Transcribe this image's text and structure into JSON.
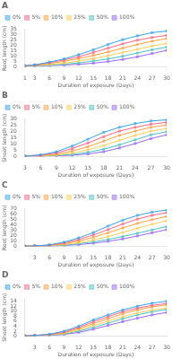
{
  "chart_data": [
    {
      "type": "line",
      "title": "A",
      "xlabel": "Duration of exposure (Days)",
      "ylabel": "Root length (cm)",
      "x": [
        1,
        3,
        6,
        9,
        12,
        15,
        18,
        21,
        24,
        27,
        30
      ],
      "series": [
        {
          "name": "0%",
          "values": [
            1.0,
            2.0,
            4.5,
            7.5,
            11.5,
            16.0,
            21.0,
            25.5,
            29.0,
            32.0,
            33.5
          ]
        },
        {
          "name": "5%",
          "values": [
            1.0,
            1.8,
            4.0,
            6.5,
            9.5,
            13.5,
            17.5,
            21.5,
            25.0,
            27.5,
            29.5
          ]
        },
        {
          "name": "10%",
          "values": [
            1.0,
            1.5,
            3.2,
            5.2,
            7.8,
            10.8,
            14.0,
            17.5,
            21.0,
            24.0,
            26.5
          ]
        },
        {
          "name": "25%",
          "values": [
            1.0,
            1.3,
            2.2,
            3.5,
            5.5,
            7.8,
            10.5,
            13.5,
            16.5,
            19.5,
            22.0
          ]
        },
        {
          "name": "50%",
          "values": [
            1.0,
            1.1,
            1.6,
            2.5,
            3.8,
            5.5,
            7.5,
            10.0,
            13.0,
            16.0,
            18.5
          ]
        },
        {
          "name": "100%",
          "values": [
            1.0,
            1.0,
            1.3,
            1.8,
            2.5,
            3.5,
            5.0,
            7.0,
            9.5,
            12.5,
            15.5
          ]
        }
      ],
      "xlim": [
        1,
        30
      ],
      "xticks": [
        1,
        3,
        6,
        9,
        12,
        15,
        18,
        21,
        24,
        27,
        30
      ],
      "ylim": [
        0,
        35
      ],
      "yticks": [
        0,
        5,
        10,
        15,
        20,
        25,
        30,
        35
      ],
      "grid": false,
      "legend": "upper left",
      "marker": "square",
      "line_style": "solid"
    },
    {
      "type": "line",
      "title": "B",
      "xlabel": "Duration of exposure (Days)",
      "ylabel": "Shoot length (cm)",
      "x": [
        3,
        6,
        9,
        12,
        15,
        18,
        21,
        24,
        27,
        30
      ],
      "series": [
        {
          "name": "0%",
          "values": [
            0.5,
            1.5,
            4.0,
            8.5,
            14.0,
            19.5,
            23.5,
            26.5,
            28.5,
            29.5
          ]
        },
        {
          "name": "5%",
          "values": [
            0.5,
            1.2,
            3.0,
            6.5,
            11.0,
            16.0,
            20.5,
            23.5,
            26.0,
            27.5
          ]
        },
        {
          "name": "10%",
          "values": [
            0.5,
            0.9,
            2.0,
            4.5,
            8.0,
            12.5,
            17.0,
            20.5,
            23.5,
            25.5
          ]
        },
        {
          "name": "25%",
          "values": [
            0.5,
            0.7,
            1.3,
            2.8,
            5.5,
            9.0,
            13.0,
            17.0,
            20.5,
            22.5
          ]
        },
        {
          "name": "50%",
          "values": [
            0.5,
            0.6,
            0.9,
            1.8,
            3.5,
            6.0,
            9.5,
            13.5,
            17.5,
            20.0
          ]
        },
        {
          "name": "100%",
          "values": [
            0.5,
            0.5,
            0.7,
            1.2,
            2.2,
            4.0,
            7.0,
            10.5,
            14.5,
            17.5
          ]
        }
      ],
      "xlim": [
        3,
        30
      ],
      "xticks": [
        3,
        6,
        9,
        12,
        15,
        18,
        21,
        24,
        27,
        30
      ],
      "ylim": [
        0,
        30
      ],
      "yticks": [
        0,
        5,
        10,
        15,
        20,
        25,
        30
      ],
      "grid": false,
      "legend": "upper left",
      "marker": "square",
      "line_style": "solid"
    },
    {
      "type": "line",
      "title": "C",
      "xlabel": "Duration of exposure (Days)",
      "ylabel": "Root length (cm)",
      "x": [
        1,
        3,
        6,
        9,
        12,
        15,
        18,
        21,
        24,
        27,
        30
      ],
      "series": [
        {
          "name": "0%",
          "values": [
            0.5,
            1.0,
            3.0,
            8.0,
            16.0,
            26.0,
            38.0,
            49.0,
            58.0,
            64.0,
            68.0
          ]
        },
        {
          "name": "5%",
          "values": [
            0.5,
            1.0,
            2.5,
            6.5,
            13.0,
            21.5,
            31.5,
            42.0,
            51.0,
            58.0,
            63.0
          ]
        },
        {
          "name": "10%",
          "values": [
            0.5,
            0.8,
            2.0,
            5.0,
            10.0,
            17.0,
            25.5,
            34.5,
            43.0,
            50.0,
            56.0
          ]
        },
        {
          "name": "25%",
          "values": [
            0.5,
            0.7,
            1.5,
            3.5,
            7.0,
            12.0,
            18.5,
            26.0,
            34.0,
            41.5,
            48.0
          ]
        },
        {
          "name": "50%",
          "values": [
            0.5,
            0.6,
            1.0,
            2.5,
            5.0,
            8.5,
            13.0,
            18.5,
            24.5,
            31.0,
            37.0
          ]
        },
        {
          "name": "100%",
          "values": [
            0.5,
            0.5,
            0.8,
            1.8,
            3.5,
            6.0,
            9.5,
            14.0,
            19.5,
            25.5,
            31.5
          ]
        }
      ],
      "xlim": [
        1,
        30
      ],
      "xticks": [
        3,
        6,
        9,
        12,
        15,
        18,
        21,
        24,
        27,
        30
      ],
      "ylim": [
        0,
        70
      ],
      "yticks": [
        0,
        10,
        20,
        30,
        40,
        50,
        60,
        70
      ],
      "grid": false,
      "legend": "upper left",
      "marker": "square",
      "line_style": "solid"
    },
    {
      "type": "line",
      "title": "D",
      "xlabel": "Duration of exposure (Days)",
      "ylabel": "Shoot length (cm)",
      "x": [
        1,
        3,
        6,
        9,
        12,
        15,
        18,
        21,
        24,
        27,
        30
      ],
      "series": [
        {
          "name": "0%",
          "values": [
            0.1,
            0.3,
            0.8,
            2.0,
            4.0,
            6.5,
            8.5,
            10.5,
            12.0,
            13.2,
            14.0
          ]
        },
        {
          "name": "5%",
          "values": [
            0.1,
            0.3,
            0.7,
            1.7,
            3.5,
            5.8,
            7.8,
            9.8,
            11.2,
            12.3,
            13.1
          ]
        },
        {
          "name": "10%",
          "values": [
            0.1,
            0.3,
            0.6,
            1.4,
            3.0,
            5.0,
            7.0,
            9.0,
            10.5,
            11.7,
            12.5
          ]
        },
        {
          "name": "25%",
          "values": [
            0.1,
            0.2,
            0.5,
            1.1,
            2.5,
            4.2,
            6.0,
            7.8,
            9.3,
            10.5,
            11.3
          ]
        },
        {
          "name": "50%",
          "values": [
            0.1,
            0.2,
            0.4,
            0.9,
            2.0,
            3.5,
            5.2,
            7.0,
            8.5,
            9.8,
            10.7
          ]
        },
        {
          "name": "100%",
          "values": [
            0.1,
            0.2,
            0.3,
            0.7,
            1.5,
            2.8,
            4.3,
            5.8,
            7.2,
            8.5,
            9.5
          ]
        }
      ],
      "xlim": [
        1,
        30
      ],
      "xticks": [
        3,
        6,
        9,
        12,
        15,
        18,
        21,
        24,
        27,
        30
      ],
      "ylim": [
        0,
        15
      ],
      "yticks": [
        0,
        2,
        4,
        6,
        8,
        10,
        12,
        14
      ],
      "grid": false,
      "legend": "upper left",
      "marker": "square",
      "line_style": "solid"
    }
  ]
}
